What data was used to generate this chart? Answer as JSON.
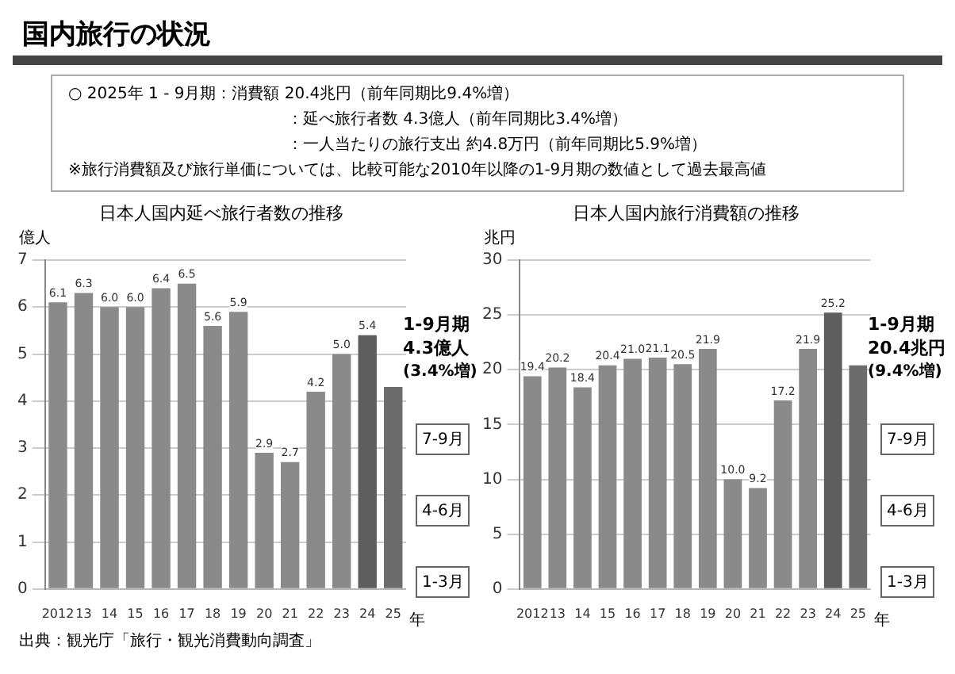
{
  "chart_data": [
    {
      "type": "other",
      "title": "国内旅行の状況",
      "annotations": [
        "○ 2025年 1 - 9月期：消費額 20.4兆円（前年同期比9.4%増）",
        "：延べ旅行者数 4.3億人（前年同期比3.4%増）",
        "：一人当たりの旅行支出 約4.8万円（前年同期比5.9%増）",
        "※旅行消費額及び旅行単価については、比較可能な2010年以降の1-9月期の数値として過去最高値"
      ]
    },
    {
      "type": "bar",
      "title": "日本人国内延べ旅行者数の推移",
      "ylabel": "億人",
      "xlabel": "年",
      "categories": [
        "2012",
        "13",
        "14",
        "15",
        "16",
        "17",
        "18",
        "19",
        "20",
        "21",
        "22",
        "23",
        "24",
        "25"
      ],
      "values": [
        6.1,
        6.3,
        6.0,
        6.0,
        6.4,
        6.5,
        5.6,
        5.9,
        2.9,
        2.7,
        4.2,
        5.0,
        5.4,
        4.3
      ],
      "value_labels": [
        "6.1",
        "6.3",
        "6.0",
        "6.0",
        "6.4",
        "6.5",
        "5.6",
        "5.9",
        "2.9",
        "2.7",
        "4.2",
        "5.0",
        "5.4",
        null
      ],
      "colors": [
        "#8a8a8a",
        "#8a8a8a",
        "#8a8a8a",
        "#8a8a8a",
        "#8a8a8a",
        "#8a8a8a",
        "#8a8a8a",
        "#8a8a8a",
        "#8a8a8a",
        "#8a8a8a",
        "#8a8a8a",
        "#8a8a8a",
        "#5e5e5e",
        "#6c6c6c"
      ],
      "ylim": [
        0,
        7
      ],
      "yticks": [
        0,
        1,
        2,
        3,
        4,
        5,
        6,
        7
      ],
      "grid": "y",
      "annotations": [
        "1-9月期",
        "4.3億人",
        "(3.4%増)",
        "7-9月",
        "4-6月",
        "1-3月",
        "出典：観光庁「旅行・観光消費動向調査」"
      ]
    },
    {
      "type": "bar",
      "title": "日本人国内旅行消費額の推移",
      "ylabel": "兆円",
      "xlabel": "年",
      "categories": [
        "2012",
        "13",
        "14",
        "15",
        "16",
        "17",
        "18",
        "19",
        "20",
        "21",
        "22",
        "23",
        "24",
        "25"
      ],
      "values": [
        19.4,
        20.2,
        18.4,
        20.4,
        21.0,
        21.1,
        20.5,
        21.9,
        10.0,
        9.2,
        17.2,
        21.9,
        25.2,
        20.4
      ],
      "value_labels": [
        "19.4",
        "20.2",
        "18.4",
        "20.4",
        "21.0",
        "21.1",
        "20.5",
        "21.9",
        "10.0",
        "9.2",
        "17.2",
        "21.9",
        "25.2",
        null
      ],
      "colors": [
        "#8a8a8a",
        "#8a8a8a",
        "#8a8a8a",
        "#8a8a8a",
        "#8a8a8a",
        "#8a8a8a",
        "#8a8a8a",
        "#8a8a8a",
        "#8a8a8a",
        "#8a8a8a",
        "#8a8a8a",
        "#8a8a8a",
        "#5e5e5e",
        "#6c6c6c"
      ],
      "ylim": [
        0,
        30
      ],
      "yticks": [
        0,
        5,
        10,
        15,
        20,
        25,
        30
      ],
      "grid": "y",
      "annotations": [
        "1-9月期",
        "20.4兆円",
        "(9.4%増)",
        "7-9月",
        "4-6月",
        "1-3月"
      ]
    }
  ]
}
